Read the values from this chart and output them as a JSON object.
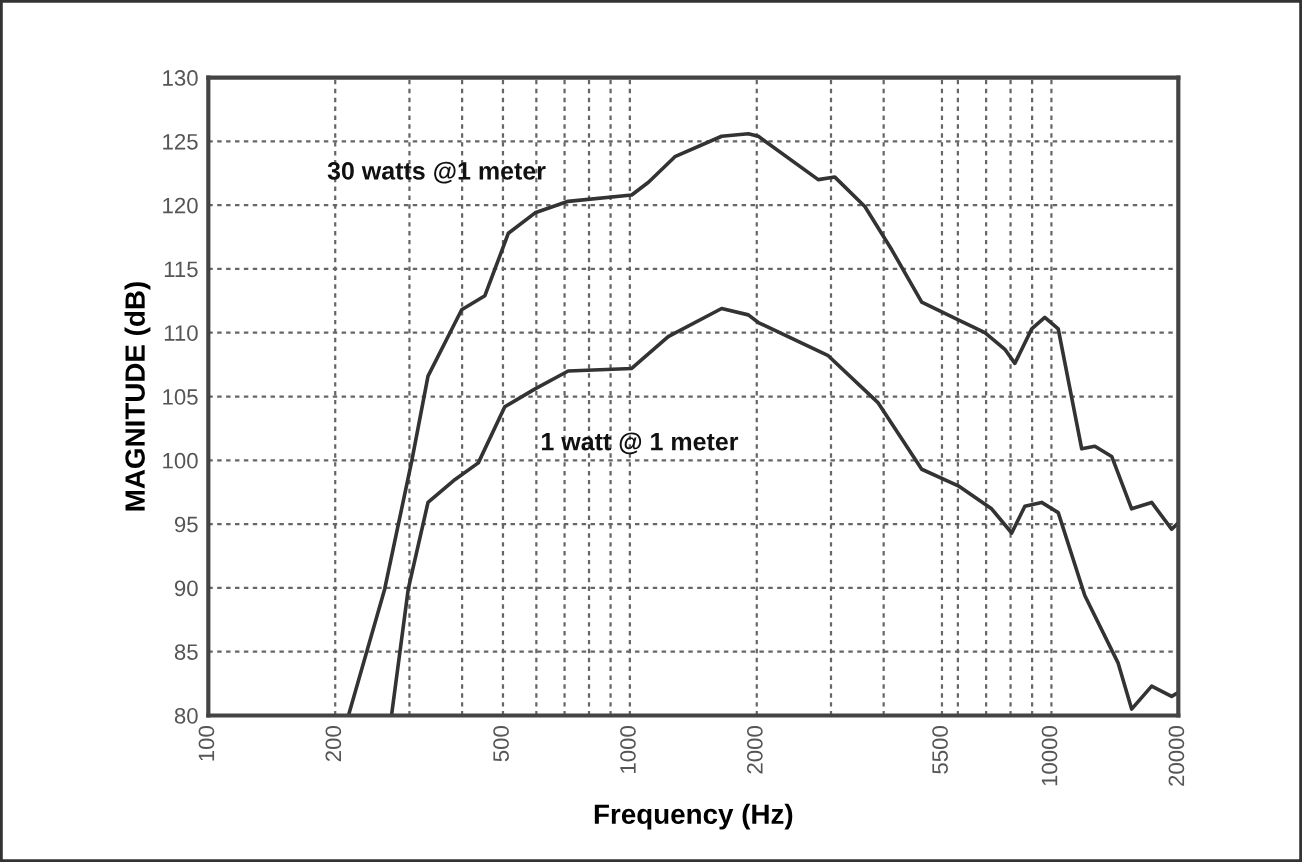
{
  "chart_data": {
    "type": "line",
    "xlabel": "Frequency (Hz)",
    "ylabel": "MAGNITUDE (dB)",
    "log": "x",
    "xlim": [
      100,
      20000
    ],
    "ylim": [
      80,
      130
    ],
    "xticks": [
      100,
      200,
      {
        "value": 300,
        "label": null
      },
      {
        "value": 400,
        "label": null
      },
      500,
      {
        "value": 600,
        "label": null
      },
      {
        "value": 700,
        "label": null
      },
      {
        "value": 800,
        "label": null
      },
      {
        "value": 900,
        "label": null
      },
      1000,
      2000,
      {
        "value": 3000,
        "label": null
      },
      {
        "value": 4000,
        "label": null
      },
      5500,
      {
        "value": 6000,
        "label": null
      },
      {
        "value": 7000,
        "label": null
      },
      {
        "value": 8000,
        "label": null
      },
      {
        "value": 9000,
        "label": null
      },
      10000,
      20000
    ],
    "yticks": [
      80,
      85,
      90,
      95,
      100,
      105,
      110,
      115,
      120,
      125,
      130
    ],
    "grid": true,
    "legend": false,
    "line_style": "solid",
    "marker": "none",
    "series": [
      {
        "name": "30 watts @1 meter",
        "color": "#333333",
        "x": [
          215,
          262,
          304,
          332,
          399,
          453,
          515,
          596,
          714,
          1010,
          1107,
          1279,
          1651,
          1910,
          2017,
          2798,
          3064,
          3609,
          4181,
          4924,
          6012,
          6953,
          7755,
          8190,
          8980,
          9645,
          10380,
          11800,
          12680,
          13900,
          15500,
          17290,
          19280,
          20000
        ],
        "values": [
          80,
          89.9,
          100,
          106.6,
          111.8,
          112.9,
          117.8,
          119.4,
          120.3,
          120.8,
          121.8,
          123.8,
          125.4,
          125.6,
          125.4,
          122.0,
          122.2,
          119.9,
          116.5,
          112.4,
          111.0,
          110.0,
          108.7,
          107.6,
          110.3,
          111.2,
          110.3,
          100.9,
          101.1,
          100.3,
          96.2,
          96.7,
          94.6,
          95.1
        ]
      },
      {
        "name": "1 watt @ 1 meter",
        "color": "#333333",
        "x": [
          272,
          298,
          332,
          385,
          437,
          505,
          596,
          714,
          1010,
          1233,
          1651,
          1910,
          2017,
          2955,
          3883,
          4924,
          6012,
          7213,
          8050,
          8650,
          9480,
          10380,
          12000,
          14400,
          15500,
          17290,
          19280,
          20000
        ],
        "values": [
          80,
          89.9,
          96.7,
          98.5,
          99.8,
          104.2,
          105.6,
          107.0,
          107.2,
          109.7,
          111.9,
          111.4,
          110.8,
          108.2,
          104.5,
          99.3,
          98.0,
          96.2,
          94.3,
          96.4,
          96.7,
          95.9,
          89.4,
          84.1,
          80.5,
          82.3,
          81.5,
          81.8
        ]
      }
    ]
  }
}
